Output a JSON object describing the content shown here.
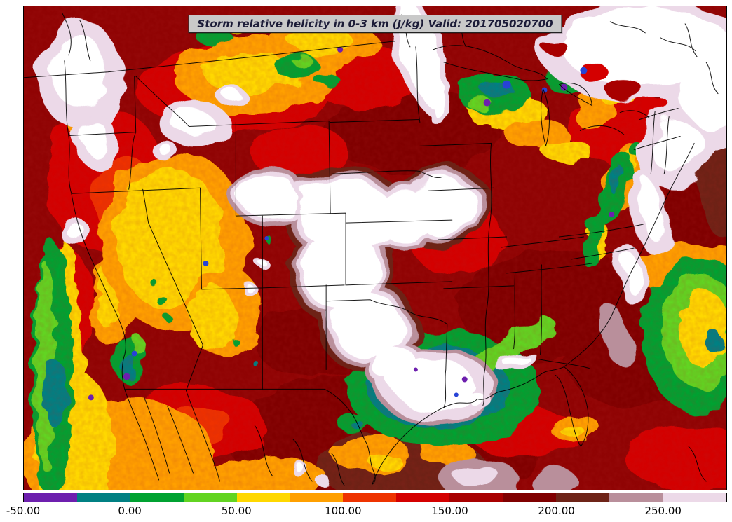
{
  "title": {
    "text": "Storm relative helicity in 0-3 km (J/kg) Valid: 201705020700"
  },
  "chart_data": {
    "type": "heatmap",
    "title": "Storm relative helicity in 0-3 km (J/kg)",
    "valid_time": "201705020700",
    "units": "J/kg",
    "region": "Continental United States and adjacent Canada / Mexico / oceans (filled-contour model output map with state and coastline boundaries)",
    "colorbar": {
      "orientation": "horizontal",
      "min": -50,
      "max": 280,
      "tick_values": [
        -50,
        0,
        50,
        100,
        150,
        200,
        250
      ],
      "tick_labels": [
        "-50.00",
        "0.00",
        "50.00",
        "100.00",
        "150.00",
        "200.00",
        "250.00"
      ],
      "segments": [
        {
          "from": -50,
          "to": -25,
          "color": "#6d1fae"
        },
        {
          "from": -25,
          "to": 0,
          "color": "#008083"
        },
        {
          "from": 0,
          "to": 25,
          "color": "#00a231"
        },
        {
          "from": 25,
          "to": 50,
          "color": "#62d421"
        },
        {
          "from": 50,
          "to": 75,
          "color": "#ffd800"
        },
        {
          "from": 75,
          "to": 100,
          "color": "#ffa000"
        },
        {
          "from": 100,
          "to": 125,
          "color": "#ee3300"
        },
        {
          "from": 125,
          "to": 150,
          "color": "#d40000"
        },
        {
          "from": 150,
          "to": 175,
          "color": "#a80000"
        },
        {
          "from": 175,
          "to": 200,
          "color": "#800000"
        },
        {
          "from": 200,
          "to": 225,
          "color": "#6e2418"
        },
        {
          "from": 225,
          "to": 250,
          "color": "#b98f9b"
        },
        {
          "from": 250,
          "to": 280,
          "color": "#ecd9e8"
        }
      ]
    },
    "field_maxima_regions": [
      "Central High Plains (Nebraska / Kansas / Oklahoma-Texas panhandles): off-scale white maximum",
      "Iowa / northern Missouri: white maximum",
      "Lower Mississippi Valley and central Gulf Coast (Louisiana / Mississippi): white maximum ringed by low (teal/green) values",
      "Eastern Dakotas into Minnesota: narrow slanted white band",
      "Pacific Northwest coast, southeastern Canada / New England coast: broad white maxima"
    ],
    "field_minima_regions": [
      "Scattered negative pockets (purple/teal): southern California mountains, Minnesota / western Great Lakes, central Appalachians, left (Pacific) edge of domain, offshore southeast of domain"
    ],
    "background_value_note": "Majority of domain shaded roughly 100-200 J/kg (red to dark red)"
  }
}
